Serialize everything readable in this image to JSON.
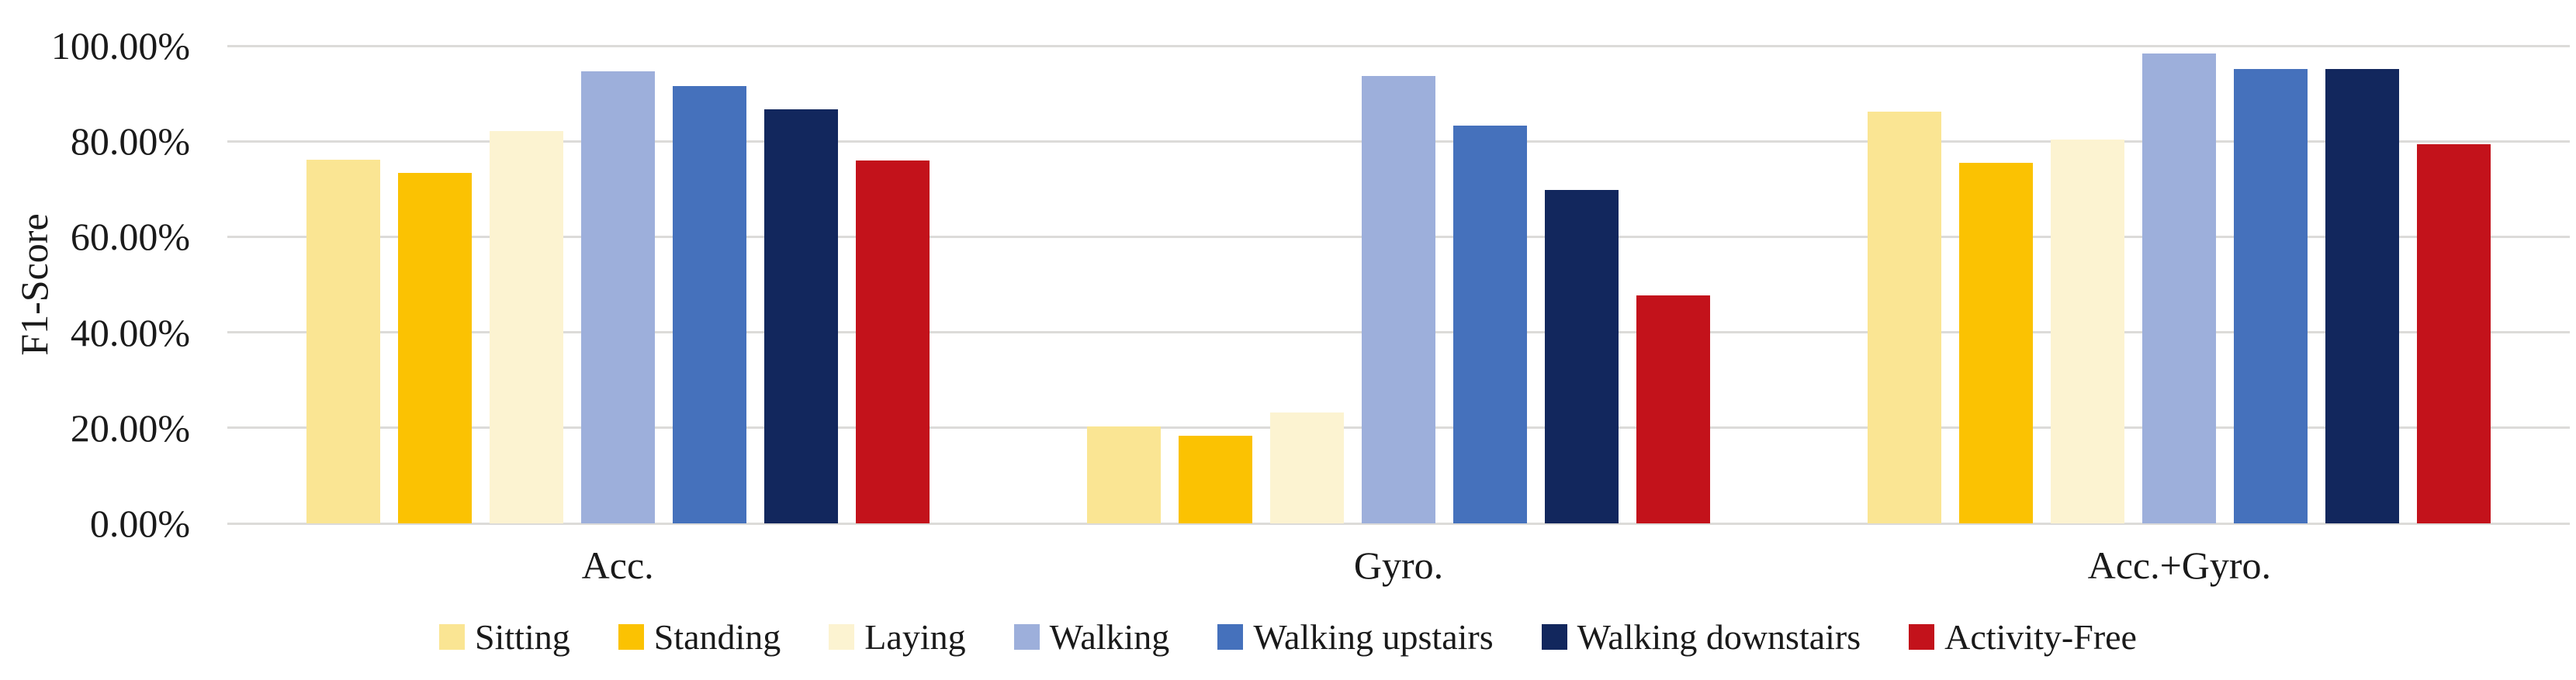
{
  "chart_data": {
    "type": "bar",
    "title": "",
    "xlabel": "",
    "ylabel": "F1-Score",
    "value_unit": "%",
    "categories": [
      "Acc.",
      "Gyro.",
      "Acc.+Gyro."
    ],
    "series": [
      {
        "name": "Sitting",
        "color": "#FAE593",
        "values": [
          76.2,
          20.3,
          86.2
        ]
      },
      {
        "name": "Standing",
        "color": "#FBC202",
        "values": [
          73.4,
          18.3,
          75.5
        ]
      },
      {
        "name": "Laying",
        "color": "#FCF3D1",
        "values": [
          82.1,
          23.2,
          80.4
        ]
      },
      {
        "name": "Walking",
        "color": "#9DAFDB",
        "values": [
          94.6,
          93.7,
          98.3
        ]
      },
      {
        "name": "Walking upstairs",
        "color": "#4571BC",
        "values": [
          91.5,
          83.3,
          95.2
        ]
      },
      {
        "name": "Walking downstairs",
        "color": "#12275D",
        "values": [
          86.7,
          69.8,
          95.2
        ]
      },
      {
        "name": "Activity-Free",
        "color": "#C3121B",
        "values": [
          75.9,
          47.7,
          79.4
        ]
      }
    ],
    "y_axis": {
      "min": 0,
      "max": 100,
      "step": 20,
      "tick_labels": [
        "0.00%",
        "20.00%",
        "40.00%",
        "60.00%",
        "80.00%",
        "100.00%"
      ]
    },
    "grid": true,
    "gridline_color": "#DCDBD9",
    "legend_position": "bottom",
    "ylim": [
      0,
      100
    ]
  }
}
